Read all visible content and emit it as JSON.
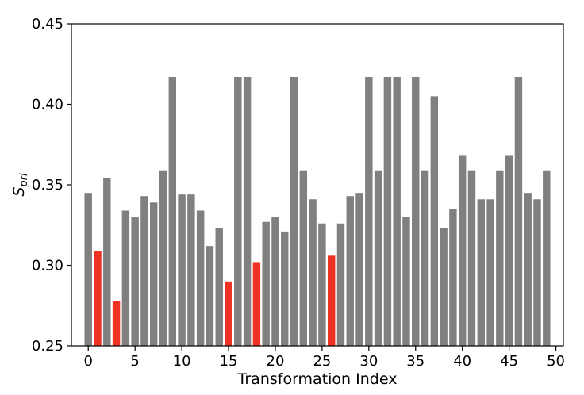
{
  "chart_data": {
    "type": "bar",
    "xlabel": "Transformation Index",
    "ylabel_base": "S",
    "ylabel_sub": "pri",
    "xlim": [
      -1.8,
      50.8
    ],
    "ylim": [
      0.25,
      0.45
    ],
    "xticks": [
      0,
      5,
      10,
      15,
      20,
      25,
      30,
      35,
      40,
      45,
      50
    ],
    "yticks": [
      "0.25",
      "0.30",
      "0.35",
      "0.40",
      "0.45"
    ],
    "grid": false,
    "colors": {
      "default": "#808080",
      "highlight": "#ee3224"
    },
    "highlighted_indices": [
      1,
      3,
      15,
      18,
      26
    ],
    "x": [
      0,
      1,
      2,
      3,
      4,
      5,
      6,
      7,
      8,
      9,
      10,
      11,
      12,
      13,
      14,
      15,
      16,
      17,
      18,
      19,
      20,
      21,
      22,
      23,
      24,
      25,
      26,
      27,
      28,
      29,
      30,
      31,
      32,
      33,
      34,
      35,
      36,
      37,
      38,
      39,
      40,
      41,
      42,
      43,
      44,
      45,
      46,
      47,
      48,
      49
    ],
    "values": [
      0.345,
      0.309,
      0.354,
      0.278,
      0.334,
      0.33,
      0.343,
      0.339,
      0.359,
      0.417,
      0.344,
      0.344,
      0.334,
      0.312,
      0.323,
      0.29,
      0.417,
      0.417,
      0.302,
      0.327,
      0.33,
      0.321,
      0.417,
      0.359,
      0.341,
      0.326,
      0.306,
      0.326,
      0.343,
      0.345,
      0.417,
      0.359,
      0.417,
      0.417,
      0.33,
      0.417,
      0.359,
      0.405,
      0.323,
      0.335,
      0.368,
      0.359,
      0.341,
      0.341,
      0.359,
      0.368,
      0.417,
      0.345,
      0.341,
      0.359
    ]
  }
}
